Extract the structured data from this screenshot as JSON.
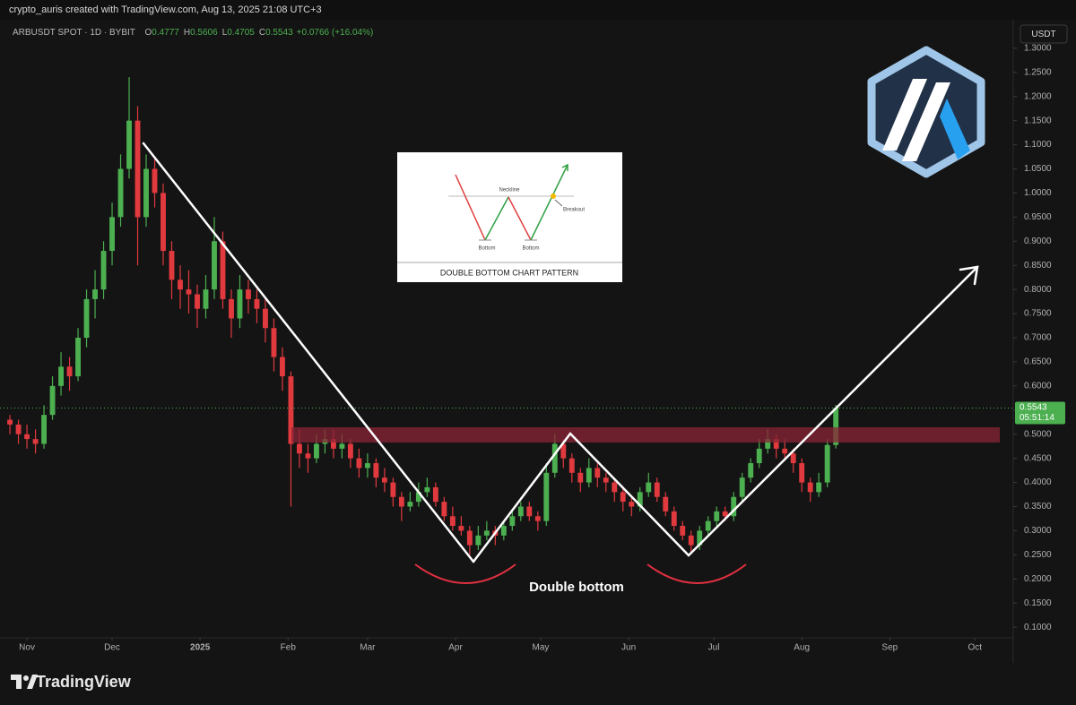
{
  "chart_data": {
    "type": "candlestick",
    "attribution": "crypto_auris created with TradingView.com, Aug 13, 2025 21:08 UTC+3",
    "symbol": "ARBUSDT SPOT · 1D · BYBIT",
    "ohlc_keys": [
      "O",
      "H",
      "L",
      "C"
    ],
    "change": "+0.0766 (+16.04%)",
    "currency": "USDT",
    "countdown": "05:51:14",
    "annotation": "Double bottom",
    "inset": {
      "title": "DOUBLE BOTTOM CHART PATTERN",
      "neckline": "Neckline",
      "bottoms": [
        "Bottom",
        "Bottom"
      ],
      "breakout": "Breakout"
    },
    "brand": "TradingView",
    "up_color": "#4caf50",
    "down_color": "#e0393e",
    "grid": false,
    "xlim": [
      -2.5,
      354.5
    ],
    "ylim": [
      0.078,
      1.348
    ],
    "xticks": [
      {
        "value": 7,
        "label": "Nov"
      },
      {
        "value": 37,
        "label": "Dec"
      },
      {
        "value": 68,
        "label": "2025"
      },
      {
        "value": 99,
        "label": "Feb"
      },
      {
        "value": 127,
        "label": "Mar"
      },
      {
        "value": 158,
        "label": "Apr"
      },
      {
        "value": 188,
        "label": "May"
      },
      {
        "value": 219,
        "label": "Jun"
      },
      {
        "value": 249,
        "label": "Jul"
      },
      {
        "value": 280,
        "label": "Aug"
      },
      {
        "value": 311,
        "label": "Sep"
      },
      {
        "value": 341,
        "label": "Oct"
      }
    ],
    "yticks": [
      {
        "value": 0.1,
        "label": "0.1000"
      },
      {
        "value": 0.15,
        "label": "0.1500"
      },
      {
        "value": 0.2,
        "label": "0.2000"
      },
      {
        "value": 0.25,
        "label": "0.2500"
      },
      {
        "value": 0.3,
        "label": "0.3000"
      },
      {
        "value": 0.35,
        "label": "0.3500"
      },
      {
        "value": 0.4,
        "label": "0.4000"
      },
      {
        "value": 0.45,
        "label": "0.4500"
      },
      {
        "value": 0.5,
        "label": "0.5000"
      },
      {
        "value": 0.55,
        "label": "0.5500"
      },
      {
        "value": 0.6,
        "label": "0.6000"
      },
      {
        "value": 0.65,
        "label": "0.6500"
      },
      {
        "value": 0.7,
        "label": "0.7000"
      },
      {
        "value": 0.75,
        "label": "0.7500"
      },
      {
        "value": 0.8,
        "label": "0.8000"
      },
      {
        "value": 0.85,
        "label": "0.8500"
      },
      {
        "value": 0.9,
        "label": "0.9000"
      },
      {
        "value": 0.95,
        "label": "0.9500"
      },
      {
        "value": 1,
        "label": "1.0000"
      },
      {
        "value": 1.05,
        "label": "1.0500"
      },
      {
        "value": 1.1,
        "label": "1.1000"
      },
      {
        "value": 1.15,
        "label": "1.1500"
      },
      {
        "value": 1.2,
        "label": "1.2000"
      },
      {
        "value": 1.25,
        "label": "1.2500"
      },
      {
        "value": 1.3,
        "label": "1.3000"
      }
    ],
    "x": [
      1,
      4,
      7,
      10,
      13,
      16,
      19,
      22,
      25,
      28,
      31,
      34,
      37,
      40,
      43,
      46,
      49,
      52,
      55,
      58,
      61,
      64,
      67,
      70,
      73,
      76,
      79,
      82,
      85,
      88,
      91,
      94,
      97,
      100,
      103,
      106,
      109,
      112,
      115,
      118,
      121,
      124,
      127,
      130,
      133,
      136,
      139,
      142,
      145,
      148,
      151,
      154,
      157,
      160,
      163,
      166,
      169,
      172,
      175,
      178,
      181,
      184,
      187,
      190,
      193,
      196,
      199,
      202,
      205,
      208,
      211,
      214,
      217,
      220,
      223,
      226,
      229,
      232,
      235,
      238,
      241,
      244,
      247,
      250,
      253,
      256,
      259,
      262,
      265,
      268,
      271,
      274,
      277,
      280,
      283,
      286,
      289,
      292
    ],
    "candles": [
      [
        0.53,
        0.54,
        0.5,
        0.52
      ],
      [
        0.52,
        0.53,
        0.48,
        0.5
      ],
      [
        0.5,
        0.52,
        0.47,
        0.49
      ],
      [
        0.49,
        0.51,
        0.46,
        0.48
      ],
      [
        0.48,
        0.56,
        0.47,
        0.54
      ],
      [
        0.54,
        0.62,
        0.53,
        0.6
      ],
      [
        0.6,
        0.67,
        0.58,
        0.64
      ],
      [
        0.64,
        0.66,
        0.59,
        0.62
      ],
      [
        0.62,
        0.72,
        0.61,
        0.7
      ],
      [
        0.7,
        0.8,
        0.68,
        0.78
      ],
      [
        0.78,
        0.84,
        0.74,
        0.8
      ],
      [
        0.8,
        0.9,
        0.78,
        0.88
      ],
      [
        0.88,
        0.98,
        0.85,
        0.95
      ],
      [
        0.95,
        1.08,
        0.93,
        1.05
      ],
      [
        1.05,
        1.24,
        1.03,
        1.15
      ],
      [
        1.15,
        1.18,
        0.85,
        0.95
      ],
      [
        0.95,
        1.08,
        0.93,
        1.05
      ],
      [
        1.05,
        1.07,
        0.97,
        1.0
      ],
      [
        1.0,
        1.02,
        0.85,
        0.88
      ],
      [
        0.88,
        0.9,
        0.78,
        0.82
      ],
      [
        0.82,
        0.85,
        0.76,
        0.8
      ],
      [
        0.8,
        0.84,
        0.75,
        0.79
      ],
      [
        0.79,
        0.81,
        0.72,
        0.76
      ],
      [
        0.76,
        0.83,
        0.74,
        0.8
      ],
      [
        0.8,
        0.95,
        0.78,
        0.9
      ],
      [
        0.9,
        0.92,
        0.76,
        0.78
      ],
      [
        0.78,
        0.8,
        0.7,
        0.74
      ],
      [
        0.74,
        0.83,
        0.72,
        0.8
      ],
      [
        0.8,
        0.82,
        0.75,
        0.78
      ],
      [
        0.78,
        0.8,
        0.73,
        0.76
      ],
      [
        0.76,
        0.78,
        0.69,
        0.72
      ],
      [
        0.72,
        0.74,
        0.63,
        0.66
      ],
      [
        0.66,
        0.68,
        0.59,
        0.62
      ],
      [
        0.62,
        0.63,
        0.35,
        0.48
      ],
      [
        0.48,
        0.51,
        0.43,
        0.46
      ],
      [
        0.46,
        0.48,
        0.42,
        0.45
      ],
      [
        0.45,
        0.5,
        0.44,
        0.48
      ],
      [
        0.48,
        0.51,
        0.46,
        0.49
      ],
      [
        0.49,
        0.51,
        0.45,
        0.47
      ],
      [
        0.47,
        0.5,
        0.45,
        0.48
      ],
      [
        0.48,
        0.49,
        0.43,
        0.45
      ],
      [
        0.45,
        0.47,
        0.41,
        0.43
      ],
      [
        0.43,
        0.46,
        0.41,
        0.44
      ],
      [
        0.44,
        0.45,
        0.39,
        0.41
      ],
      [
        0.41,
        0.43,
        0.38,
        0.4
      ],
      [
        0.4,
        0.41,
        0.35,
        0.37
      ],
      [
        0.37,
        0.38,
        0.32,
        0.35
      ],
      [
        0.35,
        0.38,
        0.34,
        0.36
      ],
      [
        0.36,
        0.4,
        0.35,
        0.38
      ],
      [
        0.38,
        0.41,
        0.37,
        0.39
      ],
      [
        0.39,
        0.4,
        0.35,
        0.36
      ],
      [
        0.36,
        0.37,
        0.32,
        0.33
      ],
      [
        0.33,
        0.35,
        0.3,
        0.31
      ],
      [
        0.31,
        0.33,
        0.29,
        0.3
      ],
      [
        0.3,
        0.31,
        0.25,
        0.27
      ],
      [
        0.27,
        0.31,
        0.26,
        0.29
      ],
      [
        0.29,
        0.32,
        0.28,
        0.3
      ],
      [
        0.3,
        0.31,
        0.27,
        0.29
      ],
      [
        0.29,
        0.32,
        0.28,
        0.31
      ],
      [
        0.31,
        0.34,
        0.3,
        0.33
      ],
      [
        0.33,
        0.36,
        0.32,
        0.35
      ],
      [
        0.35,
        0.36,
        0.32,
        0.33
      ],
      [
        0.33,
        0.34,
        0.3,
        0.32
      ],
      [
        0.32,
        0.44,
        0.31,
        0.42
      ],
      [
        0.42,
        0.5,
        0.41,
        0.48
      ],
      [
        0.48,
        0.49,
        0.43,
        0.45
      ],
      [
        0.45,
        0.46,
        0.4,
        0.42
      ],
      [
        0.42,
        0.43,
        0.38,
        0.4
      ],
      [
        0.4,
        0.45,
        0.39,
        0.43
      ],
      [
        0.43,
        0.44,
        0.39,
        0.41
      ],
      [
        0.41,
        0.42,
        0.38,
        0.4
      ],
      [
        0.4,
        0.41,
        0.36,
        0.38
      ],
      [
        0.38,
        0.39,
        0.34,
        0.36
      ],
      [
        0.36,
        0.37,
        0.33,
        0.35
      ],
      [
        0.35,
        0.39,
        0.34,
        0.38
      ],
      [
        0.38,
        0.42,
        0.37,
        0.4
      ],
      [
        0.4,
        0.41,
        0.36,
        0.37
      ],
      [
        0.37,
        0.38,
        0.33,
        0.34
      ],
      [
        0.34,
        0.35,
        0.3,
        0.31
      ],
      [
        0.31,
        0.32,
        0.28,
        0.29
      ],
      [
        0.29,
        0.3,
        0.255,
        0.27
      ],
      [
        0.27,
        0.31,
        0.26,
        0.3
      ],
      [
        0.3,
        0.33,
        0.29,
        0.32
      ],
      [
        0.32,
        0.35,
        0.31,
        0.34
      ],
      [
        0.34,
        0.35,
        0.32,
        0.33
      ],
      [
        0.33,
        0.38,
        0.32,
        0.37
      ],
      [
        0.37,
        0.42,
        0.36,
        0.41
      ],
      [
        0.41,
        0.45,
        0.4,
        0.44
      ],
      [
        0.44,
        0.49,
        0.43,
        0.47
      ],
      [
        0.47,
        0.51,
        0.46,
        0.49
      ],
      [
        0.49,
        0.5,
        0.45,
        0.47
      ],
      [
        0.47,
        0.49,
        0.45,
        0.46
      ],
      [
        0.46,
        0.47,
        0.42,
        0.44
      ],
      [
        0.44,
        0.45,
        0.38,
        0.4
      ],
      [
        0.4,
        0.41,
        0.36,
        0.38
      ],
      [
        0.38,
        0.42,
        0.37,
        0.4
      ],
      [
        0.4,
        0.49,
        0.39,
        0.4777
      ],
      [
        0.4777,
        0.5606,
        0.4705,
        0.5543
      ]
    ]
  }
}
